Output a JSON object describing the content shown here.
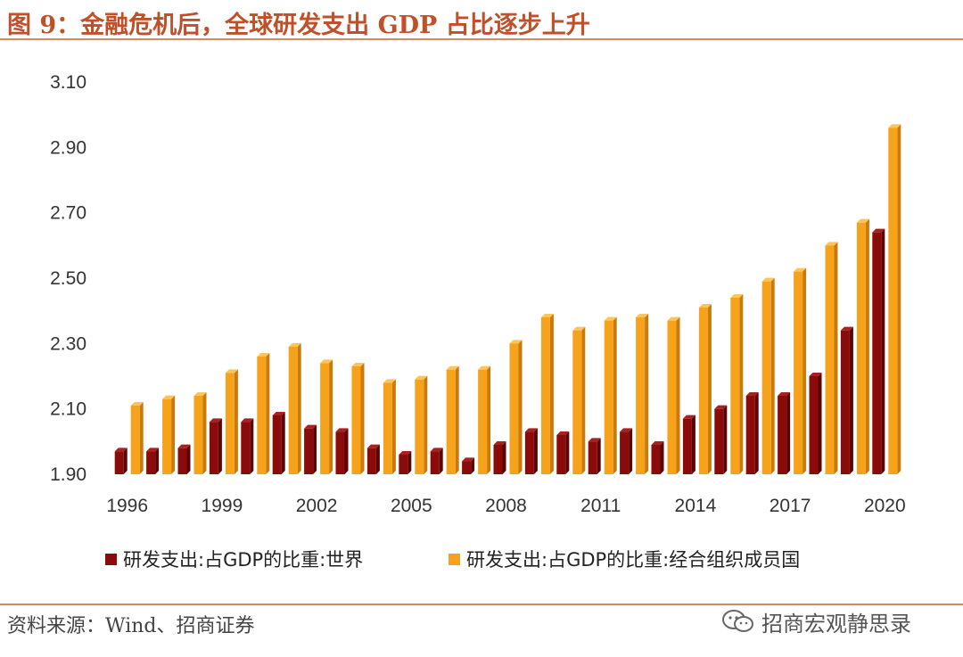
{
  "header": {
    "title": "图 9：金融危机后，全球研发支出 GDP 占比逐步上升"
  },
  "footer": {
    "source": "资料来源：Wind、招商证券",
    "watermark": "招商宏观静思录",
    "watermark_icon": "wechat-icon"
  },
  "colors": {
    "series1": "#8b0a0a",
    "series2": "#f7a21b",
    "title": "#c0502a",
    "rule": "#d28a66"
  },
  "chart_data": {
    "type": "bar",
    "title": "",
    "xlabel": "",
    "ylabel": "",
    "ylim": [
      1.9,
      3.1
    ],
    "yticks": [
      "1.90",
      "2.10",
      "2.30",
      "2.50",
      "2.70",
      "2.90",
      "3.10"
    ],
    "yticks_values": [
      1.9,
      2.1,
      2.3,
      2.5,
      2.7,
      2.9,
      3.1
    ],
    "categories": [
      "1996",
      "1997",
      "1998",
      "1999",
      "2000",
      "2001",
      "2002",
      "2003",
      "2004",
      "2005",
      "2006",
      "2007",
      "2008",
      "2009",
      "2010",
      "2011",
      "2012",
      "2013",
      "2014",
      "2015",
      "2016",
      "2017",
      "2018",
      "2019",
      "2020"
    ],
    "xtick_labels": [
      "1996",
      "1999",
      "2002",
      "2005",
      "2008",
      "2011",
      "2014",
      "2017",
      "2020"
    ],
    "series": [
      {
        "name": "研发支出:占GDP的比重:世界",
        "values": [
          1.97,
          1.97,
          1.98,
          2.06,
          2.06,
          2.08,
          2.04,
          2.03,
          1.98,
          1.96,
          1.97,
          1.94,
          1.99,
          2.03,
          2.02,
          2.0,
          2.03,
          1.99,
          2.07,
          2.1,
          2.14,
          2.14,
          2.2,
          2.34,
          2.64
        ]
      },
      {
        "name": "研发支出:占GDP的比重:经合组织成员国",
        "values": [
          2.11,
          2.13,
          2.14,
          2.21,
          2.26,
          2.29,
          2.24,
          2.23,
          2.18,
          2.19,
          2.22,
          2.22,
          2.3,
          2.38,
          2.34,
          2.37,
          2.38,
          2.37,
          2.41,
          2.44,
          2.49,
          2.52,
          2.6,
          2.67,
          2.96
        ]
      }
    ],
    "legend": {
      "position": "bottom"
    }
  }
}
